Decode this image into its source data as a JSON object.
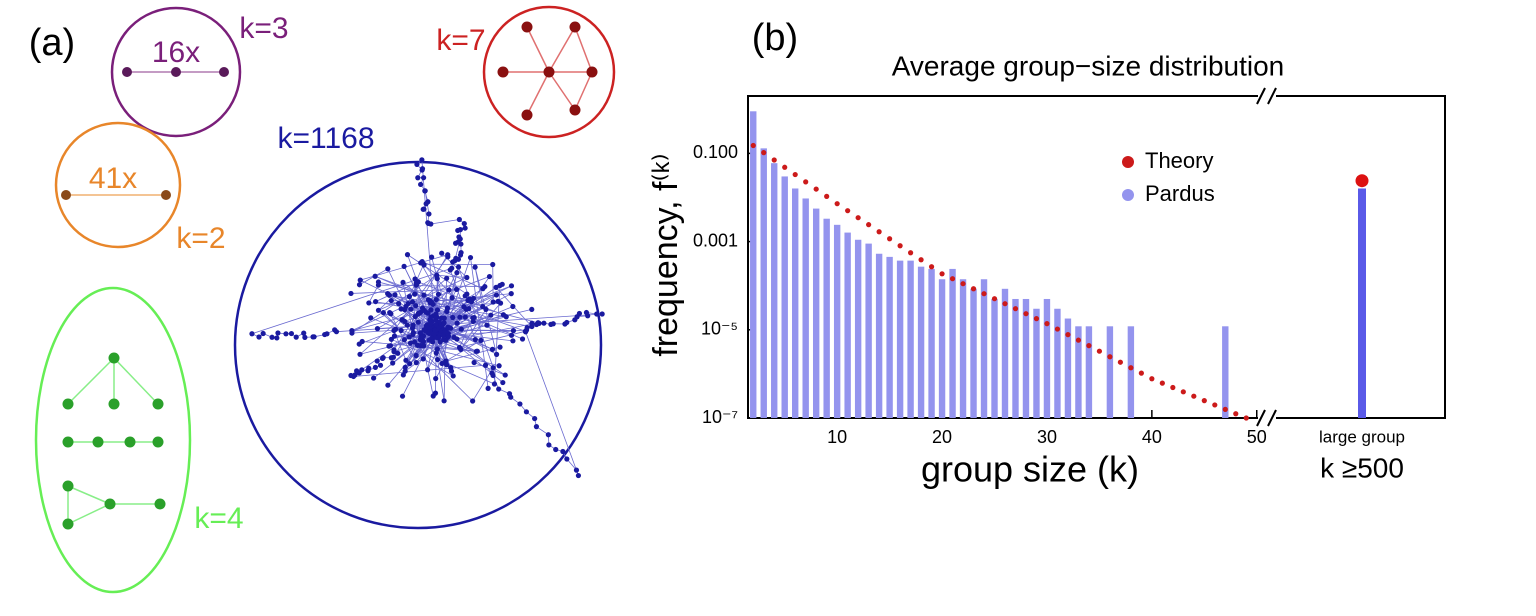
{
  "panel_a": {
    "label": "(a)",
    "trimer": {
      "count": "16x",
      "size": "k=3"
    },
    "heptamer": {
      "size": "k=7"
    },
    "dimer": {
      "count": "41x",
      "size": "k=2"
    },
    "giant": {
      "size": "k=1168"
    },
    "tetramers": {
      "size": "k=4"
    }
  },
  "chart_data": {
    "type": "bar",
    "panel_label": "(b)",
    "title": "Average group−size distribution",
    "x_label": "group size (k)",
    "y_label": "frequency, f⁽ᵏ⁾",
    "log_y": true,
    "grid": false,
    "legend": "upper-right",
    "xlim": [
      1.5,
      50.5
    ],
    "xticks": [
      10,
      20,
      30,
      40,
      50
    ],
    "ylim": [
      1e-07,
      2
    ],
    "yticks": [
      {
        "value": 1e-07,
        "label": "10⁻⁷"
      },
      {
        "value": 1e-05,
        "label": "10⁻⁵"
      },
      0.001,
      {
        "value": 0.1,
        "label": "0.100"
      }
    ],
    "series": [
      {
        "name": "Theory",
        "color": "#cc1a1a",
        "style": "dots",
        "x": [
          2,
          3,
          4,
          5,
          6,
          7,
          8,
          9,
          10,
          11,
          12,
          13,
          14,
          15,
          16,
          17,
          18,
          19,
          20,
          21,
          22,
          23,
          24,
          25,
          26,
          27,
          28,
          29,
          30,
          31,
          32,
          33,
          34,
          35,
          36,
          37,
          38,
          39,
          40,
          41,
          42,
          43,
          44,
          45,
          46,
          47,
          48,
          49
        ],
        "values": [
          0.151,
          0.104,
          0.0708,
          0.0484,
          0.0331,
          0.0226,
          0.0155,
          0.0106,
          0.00724,
          0.00502,
          0.00348,
          0.00242,
          0.00167,
          0.00116,
          0.000805,
          0.000558,
          0.000387,
          0.000269,
          0.000186,
          0.000144,
          0.000111,
          8.53e-05,
          6.58e-05,
          5.07e-05,
          3.91e-05,
          3.01e-05,
          2.32e-05,
          1.79e-05,
          1.38e-05,
          1.04e-05,
          7.76e-06,
          5.82e-06,
          4.37e-06,
          3.27e-06,
          2.45e-06,
          1.84e-06,
          1.38e-06,
          1.04e-06,
          7.76e-07,
          6.18e-07,
          4.92e-07,
          3.92e-07,
          3.12e-07,
          2.48e-07,
          1.98e-07,
          1.57e-07,
          1.25e-07,
          1e-07
        ]
      },
      {
        "name": "Pardus",
        "color": "#9494ee",
        "style": "bars",
        "x": [
          2,
          3,
          4,
          5,
          6,
          7,
          8,
          9,
          10,
          11,
          12,
          13,
          14,
          15,
          16,
          17,
          18,
          19,
          20,
          21,
          22,
          23,
          24,
          25,
          26,
          27,
          28,
          29,
          30,
          31,
          32,
          33,
          34,
          36,
          38,
          47
        ],
        "values": [
          0.9,
          0.13,
          0.06,
          0.03,
          0.016,
          0.0095,
          0.0056,
          0.0033,
          0.0024,
          0.0016,
          0.0011,
          0.0009,
          0.00053,
          0.00045,
          0.00037,
          0.00037,
          0.00027,
          0.00024,
          0.00014,
          0.00024,
          0.00014,
          8.5e-05,
          0.00014,
          5e-05,
          8.5e-05,
          5e-05,
          5e-05,
          3e-05,
          5e-05,
          3e-05,
          1.8e-05,
          1.2e-05,
          1.2e-05,
          1.2e-05,
          1.2e-05,
          1.2e-05
        ]
      }
    ],
    "large_group": {
      "label": "large group",
      "sublabel": "k ≥500",
      "pardus": 0.016,
      "pardus_color": "#5a5ae8",
      "theory": 0.024,
      "theory_color": "#dd1111"
    }
  }
}
